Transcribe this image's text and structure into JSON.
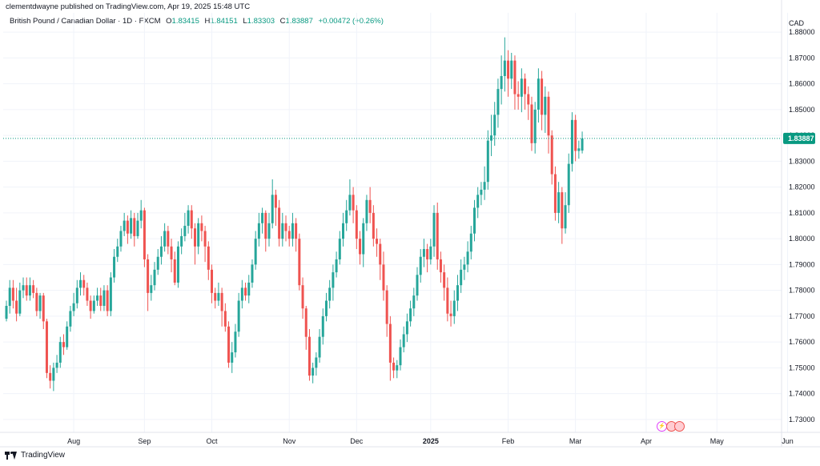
{
  "header": {
    "published_text": "clementdwayne published on TradingView.com, Apr 19, 2025 15:48 UTC"
  },
  "legend": {
    "symbol": "British Pound / Canadian Dollar · 1D · FXCM",
    "open": "1.83415",
    "high": "1.84151",
    "low": "1.83303",
    "close": "1.83887",
    "change": "+0.00472 (+0.26%)"
  },
  "footer": {
    "brand": "TradingView"
  },
  "currency": "CAD",
  "colors": {
    "up": "#26a69a",
    "down": "#ef5350",
    "grid": "#f0f3fa",
    "last_price": "#089981"
  },
  "chart_data": {
    "type": "candlestick",
    "title": "British Pound / Canadian Dollar · 1D · FXCM",
    "ylim": [
      1.725,
      1.8875
    ],
    "y_ticks": [
      "1.88000",
      "1.87000",
      "1.86000",
      "1.85000",
      "1.84000",
      "1.83000",
      "1.82000",
      "1.81000",
      "1.80000",
      "1.79000",
      "1.78000",
      "1.77000",
      "1.76000",
      "1.75000",
      "1.74000",
      "1.73000"
    ],
    "y_tick_values": [
      1.88,
      1.87,
      1.86,
      1.85,
      1.84,
      1.83,
      1.82,
      1.81,
      1.8,
      1.79,
      1.78,
      1.77,
      1.76,
      1.75,
      1.74,
      1.73
    ],
    "x_ticks": [
      {
        "label": "Aug",
        "index": 20
      },
      {
        "label": "Sep",
        "index": 41
      },
      {
        "label": "Oct",
        "index": 61
      },
      {
        "label": "Nov",
        "index": 84
      },
      {
        "label": "Dec",
        "index": 104
      },
      {
        "label": "2025",
        "index": 126
      },
      {
        "label": "Feb",
        "index": 149
      },
      {
        "label": "Mar",
        "index": 169
      },
      {
        "label": "Apr",
        "index": 190
      },
      {
        "label": "May",
        "index": 211
      },
      {
        "label": "Jun",
        "index": 232
      }
    ],
    "last_price": 1.83887,
    "last_price_label": "1.83887",
    "total_slots": 240,
    "candles": [
      [
        1.769,
        1.774,
        1.771,
        1.776,
        1.768
      ],
      [
        1.774,
        1.781,
        1.779,
        1.784,
        1.771
      ],
      [
        1.781,
        1.776,
        1.779,
        1.784,
        1.773
      ],
      [
        1.776,
        1.771,
        1.779,
        1.781,
        1.768
      ],
      [
        1.771,
        1.78,
        1.777,
        1.783,
        1.77
      ],
      [
        1.78,
        1.782,
        1.779,
        1.785,
        1.777
      ],
      [
        1.782,
        1.778,
        1.781,
        1.785,
        1.776
      ],
      [
        1.778,
        1.782,
        1.779,
        1.785,
        1.776
      ],
      [
        1.782,
        1.779,
        1.781,
        1.784,
        1.777
      ],
      [
        1.779,
        1.772,
        1.775,
        1.781,
        1.77
      ],
      [
        1.772,
        1.778,
        1.776,
        1.779,
        1.769
      ],
      [
        1.778,
        1.768,
        1.771,
        1.779,
        1.765
      ],
      [
        1.768,
        1.748,
        1.757,
        1.769,
        1.746
      ],
      [
        1.748,
        1.745,
        1.747,
        1.751,
        1.742
      ],
      [
        1.745,
        1.75,
        1.747,
        1.752,
        1.741
      ],
      [
        1.75,
        1.752,
        1.751,
        1.755,
        1.748
      ],
      [
        1.752,
        1.76,
        1.755,
        1.762,
        1.75
      ],
      [
        1.76,
        1.758,
        1.759,
        1.763,
        1.755
      ],
      [
        1.758,
        1.766,
        1.762,
        1.768,
        1.757
      ],
      [
        1.766,
        1.772,
        1.769,
        1.774,
        1.764
      ],
      [
        1.772,
        1.775,
        1.773,
        1.779,
        1.77
      ],
      [
        1.775,
        1.781,
        1.777,
        1.784,
        1.773
      ],
      [
        1.781,
        1.784,
        1.782,
        1.787,
        1.778
      ],
      [
        1.784,
        1.781,
        1.783,
        1.786,
        1.778
      ],
      [
        1.781,
        1.776,
        1.778,
        1.783,
        1.774
      ],
      [
        1.776,
        1.772,
        1.774,
        1.778,
        1.769
      ],
      [
        1.772,
        1.776,
        1.775,
        1.778,
        1.771
      ],
      [
        1.776,
        1.778,
        1.777,
        1.781,
        1.774
      ],
      [
        1.778,
        1.774,
        1.776,
        1.781,
        1.772
      ],
      [
        1.774,
        1.78,
        1.777,
        1.782,
        1.772
      ],
      [
        1.78,
        1.772,
        1.776,
        1.782,
        1.77
      ],
      [
        1.772,
        1.785,
        1.779,
        1.787,
        1.77
      ],
      [
        1.785,
        1.793,
        1.789,
        1.796,
        1.783
      ],
      [
        1.793,
        1.797,
        1.795,
        1.8,
        1.791
      ],
      [
        1.797,
        1.803,
        1.8,
        1.805,
        1.795
      ],
      [
        1.803,
        1.807,
        1.805,
        1.81,
        1.801
      ],
      [
        1.807,
        1.802,
        1.805,
        1.809,
        1.798
      ],
      [
        1.802,
        1.808,
        1.805,
        1.811,
        1.8
      ],
      [
        1.808,
        1.801,
        1.806,
        1.81,
        1.797
      ],
      [
        1.801,
        1.807,
        1.804,
        1.81,
        1.8
      ],
      [
        1.807,
        1.811,
        1.809,
        1.815,
        1.804
      ],
      [
        1.811,
        1.792,
        1.801,
        1.812,
        1.789
      ],
      [
        1.792,
        1.779,
        1.785,
        1.794,
        1.772
      ],
      [
        1.779,
        1.782,
        1.78,
        1.786,
        1.776
      ],
      [
        1.782,
        1.788,
        1.785,
        1.791,
        1.78
      ],
      [
        1.788,
        1.793,
        1.791,
        1.796,
        1.786
      ],
      [
        1.793,
        1.797,
        1.795,
        1.801,
        1.79
      ],
      [
        1.797,
        1.803,
        1.8,
        1.806,
        1.795
      ],
      [
        1.803,
        1.797,
        1.8,
        1.805,
        1.794
      ],
      [
        1.797,
        1.792,
        1.795,
        1.8,
        1.787
      ],
      [
        1.792,
        1.783,
        1.788,
        1.795,
        1.782
      ],
      [
        1.783,
        1.797,
        1.79,
        1.799,
        1.781
      ],
      [
        1.797,
        1.801,
        1.799,
        1.804,
        1.794
      ],
      [
        1.801,
        1.805,
        1.803,
        1.81,
        1.799
      ],
      [
        1.805,
        1.811,
        1.808,
        1.813,
        1.802
      ],
      [
        1.811,
        1.804,
        1.808,
        1.813,
        1.8
      ],
      [
        1.804,
        1.797,
        1.801,
        1.806,
        1.79
      ],
      [
        1.797,
        1.806,
        1.802,
        1.808,
        1.794
      ],
      [
        1.806,
        1.803,
        1.805,
        1.809,
        1.799
      ],
      [
        1.803,
        1.797,
        1.8,
        1.805,
        1.791
      ],
      [
        1.797,
        1.788,
        1.792,
        1.799,
        1.784
      ],
      [
        1.788,
        1.779,
        1.783,
        1.79,
        1.775
      ],
      [
        1.779,
        1.776,
        1.778,
        1.781,
        1.773
      ],
      [
        1.776,
        1.779,
        1.777,
        1.783,
        1.774
      ],
      [
        1.779,
        1.772,
        1.775,
        1.781,
        1.766
      ],
      [
        1.772,
        1.766,
        1.769,
        1.775,
        1.764
      ],
      [
        1.766,
        1.752,
        1.759,
        1.768,
        1.75
      ],
      [
        1.752,
        1.756,
        1.754,
        1.76,
        1.748
      ],
      [
        1.756,
        1.764,
        1.76,
        1.767,
        1.754
      ],
      [
        1.764,
        1.776,
        1.77,
        1.779,
        1.762
      ],
      [
        1.776,
        1.781,
        1.778,
        1.784,
        1.773
      ],
      [
        1.781,
        1.778,
        1.78,
        1.783,
        1.776
      ],
      [
        1.778,
        1.783,
        1.781,
        1.786,
        1.775
      ],
      [
        1.783,
        1.79,
        1.787,
        1.792,
        1.781
      ],
      [
        1.79,
        1.8,
        1.795,
        1.803,
        1.788
      ],
      [
        1.8,
        1.806,
        1.803,
        1.81,
        1.797
      ],
      [
        1.806,
        1.81,
        1.808,
        1.812,
        1.802
      ],
      [
        1.81,
        1.8,
        1.805,
        1.811,
        1.795
      ],
      [
        1.8,
        1.806,
        1.803,
        1.81,
        1.797
      ],
      [
        1.806,
        1.817,
        1.812,
        1.823,
        1.804
      ],
      [
        1.817,
        1.812,
        1.815,
        1.819,
        1.805
      ],
      [
        1.812,
        1.8,
        1.806,
        1.815,
        1.797
      ],
      [
        1.8,
        1.806,
        1.803,
        1.81,
        1.797
      ],
      [
        1.806,
        1.803,
        1.805,
        1.809,
        1.799
      ],
      [
        1.803,
        1.8,
        1.801,
        1.805,
        1.797
      ],
      [
        1.8,
        1.806,
        1.803,
        1.81,
        1.797
      ],
      [
        1.806,
        1.8,
        1.803,
        1.808,
        1.795
      ],
      [
        1.8,
        1.782,
        1.791,
        1.802,
        1.78
      ],
      [
        1.782,
        1.773,
        1.777,
        1.785,
        1.769
      ],
      [
        1.773,
        1.762,
        1.767,
        1.774,
        1.757
      ],
      [
        1.762,
        1.747,
        1.754,
        1.765,
        1.745
      ],
      [
        1.747,
        1.75,
        1.749,
        1.752,
        1.744
      ],
      [
        1.75,
        1.754,
        1.752,
        1.756,
        1.747
      ],
      [
        1.754,
        1.762,
        1.758,
        1.765,
        1.752
      ],
      [
        1.762,
        1.77,
        1.766,
        1.773,
        1.759
      ],
      [
        1.77,
        1.776,
        1.773,
        1.779,
        1.768
      ],
      [
        1.776,
        1.781,
        1.778,
        1.784,
        1.773
      ],
      [
        1.781,
        1.787,
        1.784,
        1.79,
        1.776
      ],
      [
        1.787,
        1.792,
        1.79,
        1.795,
        1.785
      ],
      [
        1.792,
        1.8,
        1.796,
        1.803,
        1.79
      ],
      [
        1.8,
        1.806,
        1.803,
        1.81,
        1.797
      ],
      [
        1.806,
        1.811,
        1.809,
        1.815,
        1.803
      ],
      [
        1.811,
        1.817,
        1.815,
        1.823,
        1.809
      ]
    ],
    "candles_b": [
      [
        1.817,
        1.811,
        1.814,
        1.82,
        1.806
      ],
      [
        1.811,
        1.8,
        1.805,
        1.813,
        1.796
      ],
      [
        1.8,
        1.794,
        1.797,
        1.803,
        1.79
      ],
      [
        1.794,
        1.806,
        1.8,
        1.808,
        1.789
      ],
      [
        1.806,
        1.815,
        1.81,
        1.817,
        1.803
      ],
      [
        1.815,
        1.81,
        1.813,
        1.82,
        1.806
      ],
      [
        1.81,
        1.8,
        1.805,
        1.813,
        1.797
      ],
      [
        1.8,
        1.798,
        1.799,
        1.804,
        1.793
      ],
      [
        1.798,
        1.79,
        1.794,
        1.8,
        1.784
      ],
      [
        1.79,
        1.78,
        1.785,
        1.795,
        1.776
      ],
      [
        1.78,
        1.767,
        1.773,
        1.782,
        1.762
      ],
      [
        1.767,
        1.752,
        1.759,
        1.77,
        1.745
      ],
      [
        1.752,
        1.749,
        1.75,
        1.754,
        1.746
      ],
      [
        1.749,
        1.751,
        1.75,
        1.753,
        1.746
      ],
      [
        1.751,
        1.758,
        1.754,
        1.761,
        1.749
      ],
      [
        1.758,
        1.763,
        1.761,
        1.766,
        1.756
      ],
      [
        1.763,
        1.768,
        1.765,
        1.771,
        1.76
      ],
      [
        1.768,
        1.773,
        1.77,
        1.776,
        1.766
      ],
      [
        1.773,
        1.778,
        1.776,
        1.781,
        1.77
      ],
      [
        1.778,
        1.786,
        1.782,
        1.789,
        1.776
      ],
      [
        1.786,
        1.793,
        1.79,
        1.796,
        1.783
      ],
      [
        1.793,
        1.796,
        1.794,
        1.8,
        1.789
      ],
      [
        1.796,
        1.792,
        1.794,
        1.798,
        1.787
      ],
      [
        1.792,
        1.797,
        1.795,
        1.8,
        1.79
      ],
      [
        1.797,
        1.81,
        1.803,
        1.813,
        1.793
      ],
      [
        1.81,
        1.792,
        1.8,
        1.814,
        1.788
      ],
      [
        1.792,
        1.787,
        1.79,
        1.795,
        1.783
      ],
      [
        1.787,
        1.781,
        1.784,
        1.79,
        1.776
      ],
      [
        1.781,
        1.771,
        1.776,
        1.785,
        1.768
      ],
      [
        1.771,
        1.77,
        1.771,
        1.776,
        1.766
      ],
      [
        1.77,
        1.776,
        1.773,
        1.78,
        1.767
      ],
      [
        1.776,
        1.782,
        1.779,
        1.786,
        1.772
      ],
      [
        1.782,
        1.788,
        1.785,
        1.792,
        1.779
      ],
      [
        1.788,
        1.79,
        1.789,
        1.793,
        1.784
      ],
      [
        1.79,
        1.795,
        1.792,
        1.799,
        1.787
      ],
      [
        1.795,
        1.802,
        1.799,
        1.805,
        1.792
      ],
      [
        1.802,
        1.812,
        1.807,
        1.815,
        1.799
      ],
      [
        1.812,
        1.817,
        1.815,
        1.82,
        1.808
      ],
      [
        1.817,
        1.819,
        1.818,
        1.822,
        1.813
      ],
      [
        1.819,
        1.822,
        1.821,
        1.828,
        1.815
      ],
      [
        1.822,
        1.838,
        1.83,
        1.842,
        1.819
      ],
      [
        1.838,
        1.84,
        1.839,
        1.848,
        1.832
      ],
      [
        1.84,
        1.848,
        1.844,
        1.853,
        1.836
      ],
      [
        1.848,
        1.858,
        1.853,
        1.862,
        1.843
      ],
      [
        1.858,
        1.863,
        1.861,
        1.871,
        1.852
      ],
      [
        1.863,
        1.869,
        1.866,
        1.878,
        1.857
      ],
      [
        1.869,
        1.862,
        1.866,
        1.873,
        1.855
      ],
      [
        1.862,
        1.869,
        1.866,
        1.872,
        1.858
      ],
      [
        1.869,
        1.856,
        1.862,
        1.871,
        1.85
      ],
      [
        1.856,
        1.855,
        1.856,
        1.861,
        1.85
      ],
      [
        1.855,
        1.862,
        1.858,
        1.866,
        1.849
      ],
      [
        1.862,
        1.856,
        1.859,
        1.864,
        1.85
      ],
      [
        1.856,
        1.852,
        1.854,
        1.859,
        1.846
      ],
      [
        1.852,
        1.837,
        1.844,
        1.855,
        1.834
      ],
      [
        1.837,
        1.85,
        1.844,
        1.853,
        1.833
      ],
      [
        1.85,
        1.862,
        1.856,
        1.866,
        1.845
      ],
      [
        1.862,
        1.848,
        1.855,
        1.865,
        1.842
      ],
      [
        1.848,
        1.855,
        1.851,
        1.859,
        1.841
      ],
      [
        1.855,
        1.84,
        1.848,
        1.857,
        1.833
      ],
      [
        1.84,
        1.825,
        1.833,
        1.842,
        1.821
      ],
      [
        1.825,
        1.81,
        1.817,
        1.828,
        1.807
      ],
      [
        1.81,
        1.818,
        1.814,
        1.822,
        1.806
      ],
      [
        1.818,
        1.804,
        1.811,
        1.82,
        1.798
      ],
      [
        1.804,
        1.813,
        1.808,
        1.818,
        1.802
      ],
      [
        1.813,
        1.829,
        1.822,
        1.833,
        1.81
      ],
      [
        1.829,
        1.846,
        1.838,
        1.849,
        1.826
      ],
      [
        1.846,
        1.834,
        1.84,
        1.848,
        1.83
      ],
      [
        1.834,
        1.835,
        1.834,
        1.838,
        1.831
      ],
      [
        1.83415,
        1.83887,
        1.83303,
        1.84151,
        1.83303
      ]
    ],
    "candles_note": ""
  }
}
